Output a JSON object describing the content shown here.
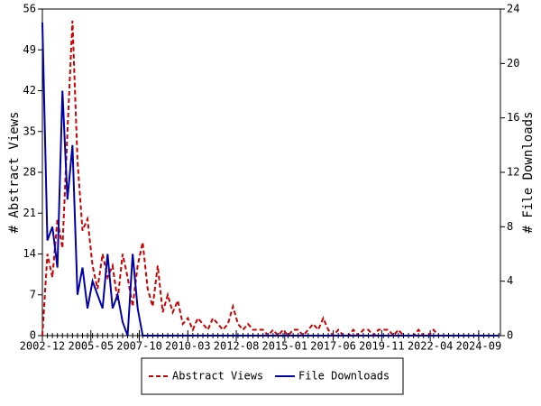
{
  "chart_data": {
    "type": "line",
    "x": [
      "2002-12",
      "2003-03",
      "2003-06",
      "2003-09",
      "2003-12",
      "2004-03",
      "2004-06",
      "2004-09",
      "2004-12",
      "2005-03",
      "2005-06",
      "2005-09",
      "2005-12",
      "2006-03",
      "2006-06",
      "2006-09",
      "2006-12",
      "2007-03",
      "2007-06",
      "2007-09",
      "2007-12",
      "2008-03",
      "2008-06",
      "2008-09",
      "2008-12",
      "2009-03",
      "2009-06",
      "2009-09",
      "2009-12",
      "2010-03",
      "2010-06",
      "2010-09",
      "2010-12",
      "2011-03",
      "2011-06",
      "2011-09",
      "2011-12",
      "2012-03",
      "2012-06",
      "2012-09",
      "2012-12",
      "2013-03",
      "2013-06",
      "2013-09",
      "2013-12",
      "2014-03",
      "2014-06",
      "2014-09",
      "2014-12",
      "2015-03",
      "2015-06",
      "2015-09",
      "2015-12",
      "2016-03",
      "2016-06",
      "2016-09",
      "2016-12",
      "2017-03",
      "2017-06",
      "2017-09",
      "2017-12",
      "2018-03",
      "2018-06",
      "2018-09",
      "2018-12",
      "2019-03",
      "2019-06",
      "2019-09",
      "2019-12",
      "2020-03",
      "2020-06",
      "2020-09",
      "2020-12",
      "2021-03",
      "2021-06",
      "2021-09",
      "2021-12",
      "2022-03",
      "2022-06",
      "2022-09",
      "2022-12",
      "2023-03",
      "2023-06",
      "2023-09",
      "2023-12",
      "2024-03",
      "2024-06",
      "2024-09",
      "2024-12",
      "2025-03",
      "2025-06",
      "2025-09"
    ],
    "series": [
      {
        "name": "Abstract Views",
        "color": "#cc0000",
        "linestyle": "dashed",
        "values": [
          0,
          14,
          10,
          20,
          15,
          35,
          54,
          30,
          18,
          20,
          12,
          8,
          14,
          10,
          12,
          6,
          14,
          10,
          5,
          12,
          16,
          8,
          5,
          12,
          4,
          7,
          4,
          6,
          2,
          3,
          1,
          3,
          2,
          1,
          3,
          2,
          1,
          2,
          5,
          2,
          1,
          2,
          1,
          1,
          1,
          0,
          1,
          0,
          1,
          0,
          1,
          1,
          0,
          1,
          2,
          1,
          3,
          1,
          0,
          1,
          0,
          0,
          1,
          0,
          1,
          1,
          0,
          1,
          1,
          1,
          0,
          1,
          0,
          0,
          0,
          1,
          0,
          0,
          1,
          0,
          0,
          0,
          0,
          0,
          0,
          0,
          0,
          0,
          0,
          0,
          0,
          0
        ]
      },
      {
        "name": "File Downloads",
        "color": "#0000aa",
        "linestyle": "solid",
        "axis": "y2",
        "values": [
          23,
          7,
          8,
          5,
          18,
          10,
          14,
          3,
          5,
          2,
          4,
          3,
          2,
          6,
          2,
          3,
          1,
          0,
          6,
          2,
          0,
          0,
          0,
          0,
          0,
          0,
          0,
          0,
          0,
          0,
          0,
          0,
          0,
          0,
          0,
          0,
          0,
          0,
          0,
          0,
          0,
          0,
          0,
          0,
          0,
          0,
          0,
          0,
          0,
          0,
          0,
          0,
          0,
          0,
          0,
          0,
          0,
          0,
          0,
          0,
          0,
          0,
          0,
          0,
          0,
          0,
          0,
          0,
          0,
          0,
          0,
          0,
          0,
          0,
          0,
          0,
          0,
          0,
          0,
          0,
          0,
          0,
          0,
          0,
          0,
          0,
          0,
          0,
          0,
          0,
          0,
          0
        ]
      }
    ],
    "y_label": "# Abstract Views",
    "y2_label": "# File Downloads",
    "xlim": [
      "2002-12",
      "2025-10"
    ],
    "xticks": [
      "2002-12",
      "2005-05",
      "2007-10",
      "2010-03",
      "2012-08",
      "2015-01",
      "2017-06",
      "2019-11",
      "2022-04",
      "2024-09"
    ],
    "ylim": [
      0,
      56
    ],
    "yticks": [
      0,
      7,
      14,
      21,
      28,
      35,
      42,
      49,
      56
    ],
    "y2lim": [
      0,
      24
    ],
    "y2ticks": [
      0,
      4,
      8,
      12,
      16,
      20,
      24
    ],
    "legend": "bottom"
  }
}
